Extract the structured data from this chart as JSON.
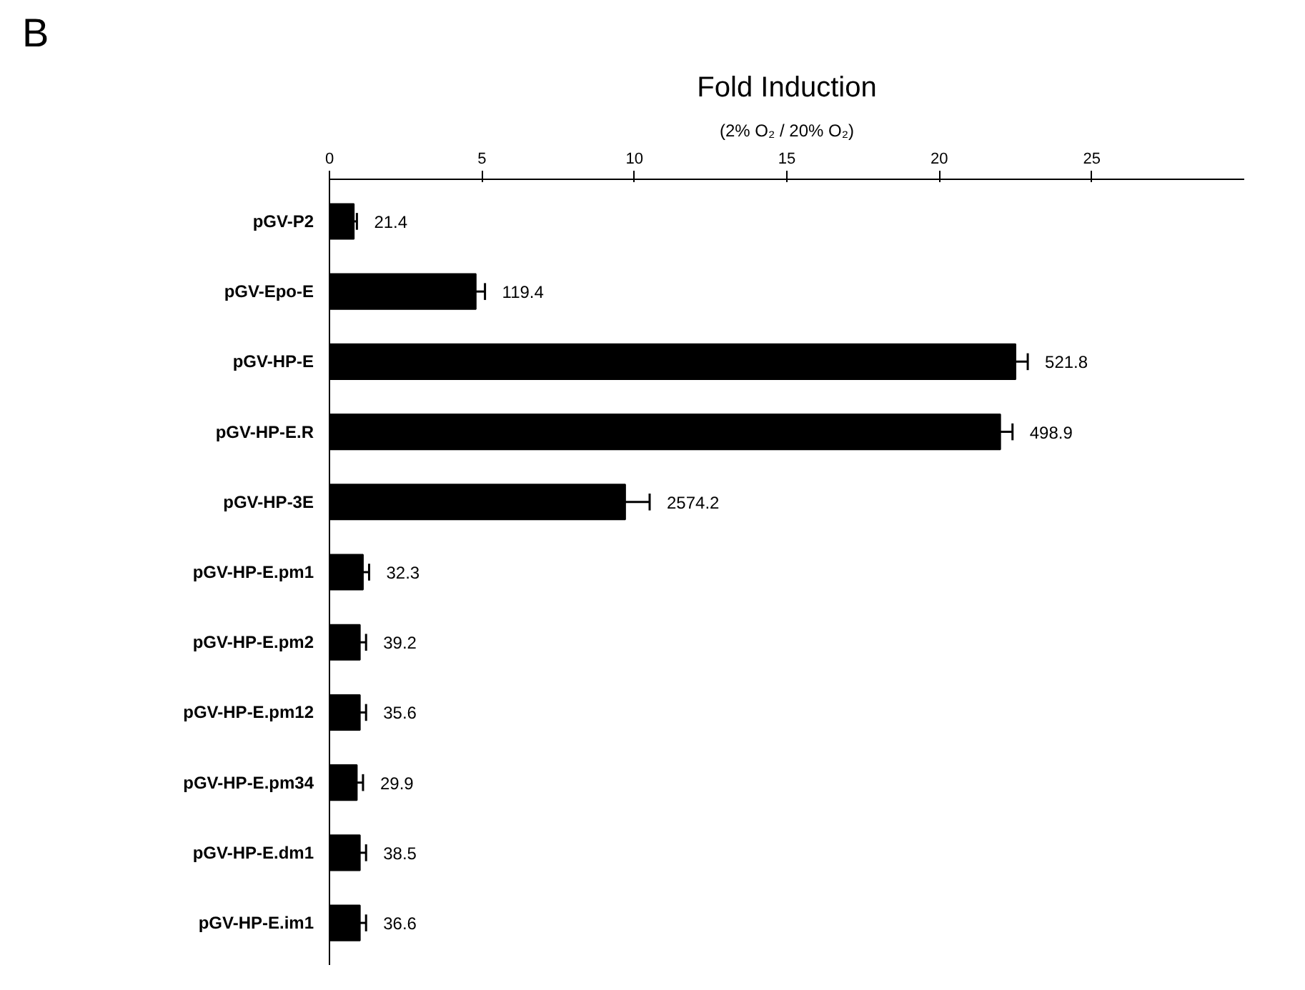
{
  "chart_data": {
    "type": "bar",
    "orientation": "horizontal",
    "title": "Fold Induction",
    "subtitle": "(2% O₂ / 20% O₂)",
    "categories": [
      "pGV-P2",
      "pGV-Epo-E",
      "pGV-HP-E",
      "pGV-HP-E.R",
      "pGV-HP-3E",
      "pGV-HP-E.pm1",
      "pGV-HP-E.pm2",
      "pGV-HP-E.pm12",
      "pGV-HP-E.pm34",
      "pGV-HP-E.dm1",
      "pGV-HP-E.im1"
    ],
    "values": [
      0.8,
      4.8,
      22.5,
      22.0,
      9.7,
      1.1,
      1.0,
      1.0,
      0.9,
      1.0,
      1.0
    ],
    "errors": [
      0.1,
      0.3,
      0.4,
      0.4,
      0.8,
      0.2,
      0.2,
      0.2,
      0.2,
      0.2,
      0.2
    ],
    "color": "#000000",
    "xlim": [
      0,
      30
    ],
    "xticks": [
      0,
      5,
      10,
      15,
      20,
      25
    ],
    "annotations": [
      "B",
      {
        "text": "21.4",
        "x": 0.9,
        "y": "pGV-P2"
      },
      {
        "text": "119.4",
        "x": 5.1,
        "y": "pGV-Epo-E"
      },
      {
        "text": "521.8",
        "x": 22.9,
        "y": "pGV-HP-E"
      },
      {
        "text": "498.9",
        "x": 22.4,
        "y": "pGV-HP-E.R"
      },
      {
        "text": "2574.2",
        "x": 10.5,
        "y": "pGV-HP-3E"
      },
      {
        "text": "32.3",
        "x": 1.3,
        "y": "pGV-HP-E.pm1"
      },
      {
        "text": "39.2",
        "x": 1.2,
        "y": "pGV-HP-E.pm2"
      },
      {
        "text": "35.6",
        "x": 1.2,
        "y": "pGV-HP-E.pm12"
      },
      {
        "text": "29.9",
        "x": 1.1,
        "y": "pGV-HP-E.pm34"
      },
      {
        "text": "38.5",
        "x": 1.2,
        "y": "pGV-HP-E.dm1"
      },
      {
        "text": "36.6",
        "x": 1.2,
        "y": "pGV-HP-E.im1"
      }
    ]
  }
}
